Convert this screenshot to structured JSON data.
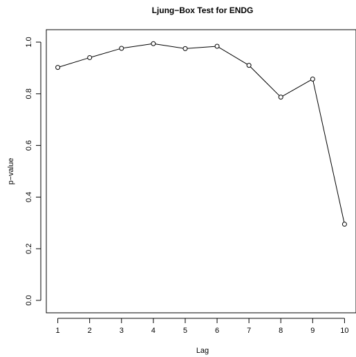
{
  "chart_data": {
    "type": "line",
    "title": "Ljung−Box Test for ENDG",
    "xlabel": "Lag",
    "ylabel": "p−value",
    "x": [
      1,
      2,
      3,
      4,
      5,
      6,
      7,
      8,
      9,
      10
    ],
    "series": [
      {
        "values": [
          0.902,
          0.94,
          0.976,
          0.994,
          0.975,
          0.984,
          0.91,
          0.787,
          0.857,
          0.295
        ]
      }
    ],
    "xticks": [
      "1",
      "2",
      "3",
      "4",
      "5",
      "6",
      "7",
      "8",
      "9",
      "10"
    ],
    "yticks": [
      "0.0",
      "0.2",
      "0.4",
      "0.6",
      "0.8",
      "1.0"
    ],
    "xlim": [
      0.64,
      10.36
    ],
    "ylim": [
      0,
      1.0
    ],
    "marker": "open-circle",
    "grid": false,
    "legend": "none"
  }
}
